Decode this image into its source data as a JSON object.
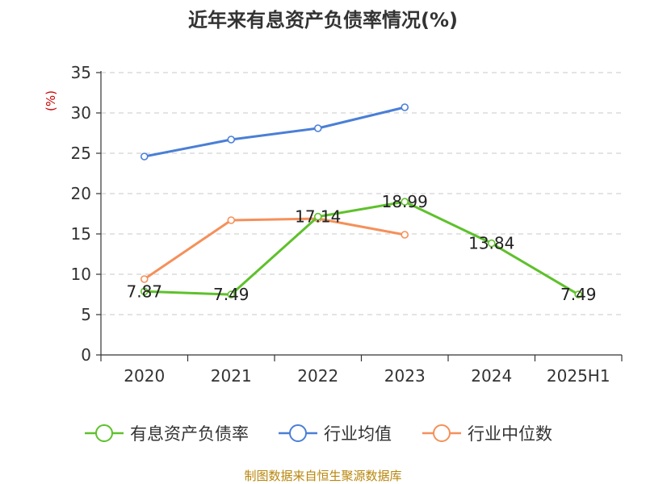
{
  "chart_data": {
    "type": "line",
    "title": "近年来有息资产负债率情况(%)",
    "unit_label": "(%)",
    "categories": [
      "2020",
      "2021",
      "2022",
      "2023",
      "2024",
      "2025H1"
    ],
    "ylim": [
      0,
      35
    ],
    "yticks": [
      "0",
      "5",
      "10",
      "15",
      "20",
      "25",
      "30",
      "35"
    ],
    "grid": true,
    "legend_position": "bottom",
    "series": [
      {
        "name": "有息资产负债率",
        "color": "#5ec12b",
        "values": [
          7.87,
          7.49,
          17.14,
          18.99,
          13.84,
          7.49
        ],
        "labels": [
          "7.87",
          "7.49",
          "17.14",
          "18.99",
          "13.84",
          "7.49"
        ]
      },
      {
        "name": "行业均值",
        "color": "#4a7fd6",
        "values": [
          24.6,
          26.7,
          28.1,
          30.7,
          null,
          null
        ]
      },
      {
        "name": "行业中位数",
        "color": "#f5905a",
        "values": [
          9.4,
          16.7,
          16.9,
          14.9,
          null,
          null
        ]
      }
    ]
  },
  "footer": {
    "source": "制图数据来自恒生聚源数据库"
  }
}
